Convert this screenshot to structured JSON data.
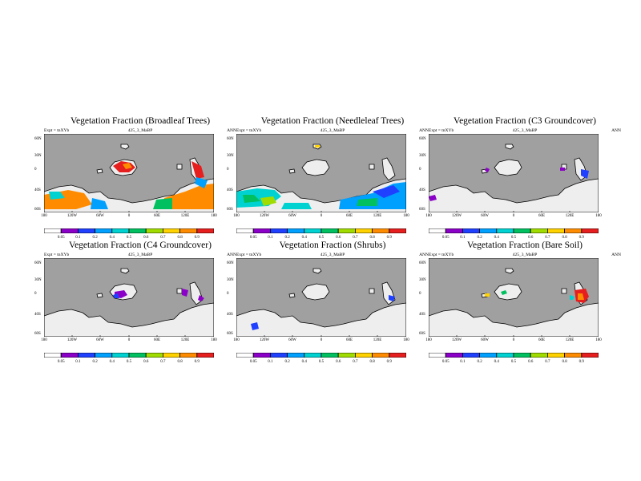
{
  "map_labels": {
    "subtitle_left": "Expt = tnXYb",
    "subtitle_center": "425_3_MaBP",
    "subtitle_right": "ANN",
    "lat_ticks": [
      "60N",
      "30N",
      "0",
      "40S",
      "60S"
    ],
    "lon_ticks": [
      "180",
      "120W",
      "60W",
      "0",
      "60E",
      "120E",
      "180"
    ],
    "colorbar_labels": [
      "0.05",
      "0.1",
      "0.2",
      "0.4",
      "0.5",
      "0.6",
      "0.7",
      "0.8",
      "0.9"
    ],
    "colorbar_colors": [
      "#ffffff",
      "#8b00c8",
      "#2040ff",
      "#00a0ff",
      "#00d2d2",
      "#00c060",
      "#a0dc00",
      "#ffd200",
      "#ff8c00",
      "#e61e1e"
    ]
  },
  "panels": [
    {
      "title": "Vegetation Fraction (Broadleaf Trees)"
    },
    {
      "title": "Vegetation Fraction (Needleleaf Trees)"
    },
    {
      "title": "Vegetation Fraction (C3 Groundcover)"
    },
    {
      "title": "Vegetation Fraction (C4 Groundcover)"
    },
    {
      "title": "Vegetation Fraction (Shrubs)"
    },
    {
      "title": "Vegetation Fraction (Bare Soil)"
    }
  ],
  "colors": {
    "ocean": "#a0a0a0",
    "land": "#eeeeee",
    "coast": "#000000"
  }
}
